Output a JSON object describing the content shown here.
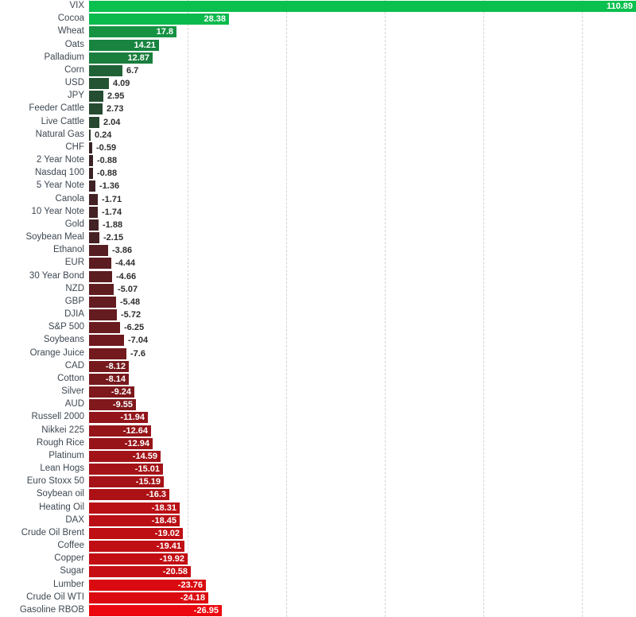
{
  "chart_data": {
    "type": "bar",
    "orientation": "horizontal",
    "title": "",
    "xlabel": "",
    "ylabel": "",
    "xlim": [
      0,
      111
    ],
    "grid": "dashed-vertical",
    "grid_values": [
      20,
      40,
      60,
      80,
      100
    ],
    "legend": "none",
    "value_label_rule": "inside bar (white) when |value| >= 8, otherwise outside (dark)",
    "categories": [
      "VIX",
      "Cocoa",
      "Wheat",
      "Oats",
      "Palladium",
      "Corn",
      "USD",
      "JPY",
      "Feeder Cattle",
      "Live Cattle",
      "Natural Gas",
      "CHF",
      "2 Year Note",
      "Nasdaq 100",
      "5 Year Note",
      "Canola",
      "10 Year Note",
      "Gold",
      "Soybean Meal",
      "Ethanol",
      "EUR",
      "30 Year Bond",
      "NZD",
      "GBP",
      "DJIA",
      "S&P 500",
      "Soybeans",
      "Orange Juice",
      "CAD",
      "Cotton",
      "Silver",
      "AUD",
      "Russell 2000",
      "Nikkei 225",
      "Rough Rice",
      "Platinum",
      "Lean Hogs",
      "Euro Stoxx 50",
      "Soybean oil",
      "Heating Oil",
      "DAX",
      "Crude Oil Brent",
      "Coffee",
      "Copper",
      "Sugar",
      "Lumber",
      "Crude Oil WTI",
      "Gasoline RBOB"
    ],
    "values": [
      110.89,
      28.38,
      17.8,
      14.21,
      12.87,
      6.7,
      4.09,
      2.95,
      2.73,
      2.04,
      0.24,
      -0.59,
      -0.88,
      -0.88,
      -1.36,
      -1.71,
      -1.74,
      -1.88,
      -2.15,
      -3.86,
      -4.44,
      -4.66,
      -5.07,
      -5.48,
      -5.72,
      -6.25,
      -7.04,
      -7.6,
      -8.12,
      -8.14,
      -9.24,
      -9.55,
      -11.94,
      -12.64,
      -12.94,
      -14.59,
      -15.01,
      -15.19,
      -16.3,
      -18.31,
      -18.45,
      -19.02,
      -19.41,
      -19.92,
      -20.58,
      -23.76,
      -24.18,
      -26.95
    ],
    "display_values": [
      "110.89",
      "28.38",
      "17.8",
      "14.21",
      "12.87",
      "6.7",
      "4.09",
      "2.95",
      "2.73",
      "2.04",
      "0.24",
      "-0.59",
      "-0.88",
      "-0.88",
      "-1.36",
      "-1.71",
      "-1.74",
      "-1.88",
      "-2.15",
      "-3.86",
      "-4.44",
      "-4.66",
      "-5.07",
      "-5.48",
      "-5.72",
      "-6.25",
      "-7.04",
      "-7.6",
      "-8.12",
      "-8.14",
      "-9.24",
      "-9.55",
      "-11.94",
      "-12.64",
      "-12.94",
      "-14.59",
      "-15.01",
      "-15.19",
      "-16.3",
      "-18.31",
      "-18.45",
      "-19.02",
      "-19.41",
      "-19.92",
      "-20.58",
      "-23.76",
      "-24.18",
      "-26.95"
    ],
    "bar_colors": [
      "#0ac04e",
      "#0bba4d",
      "#159343",
      "#188440",
      "#1a7e3e",
      "#206236",
      "#245333",
      "#254d31",
      "#264b31",
      "#274730",
      "#2a382c",
      "#372326",
      "#3a2225",
      "#3a2225",
      "#3f2125",
      "#432124",
      "#432124",
      "#442124",
      "#472024",
      "#561e22",
      "#5b1d21",
      "#5c1d21",
      "#601d20",
      "#631c20",
      "#651c20",
      "#691b1f",
      "#6e1a1f",
      "#721a1e",
      "#76191d",
      "#76191d",
      "#7e181c",
      "#80181c",
      "#91151a",
      "#951519",
      "#971419",
      "#a21318",
      "#a41317",
      "#a51217",
      "#ac1116",
      "#b91015",
      "#b90f15",
      "#bd0f14",
      "#bf0f14",
      "#c20e13",
      "#c60d13",
      "#d90b10",
      "#db0a10",
      "#eb080e"
    ]
  },
  "styles": {
    "background": "#ffffff",
    "gridline_color": "#d4d4d4",
    "category_label_color": "#3e4852",
    "value_inside_color": "#ffffff",
    "value_outside_color": "#2f2f2f",
    "max_positive_color": "#0ac04e",
    "max_negative_color": "#eb080e"
  }
}
